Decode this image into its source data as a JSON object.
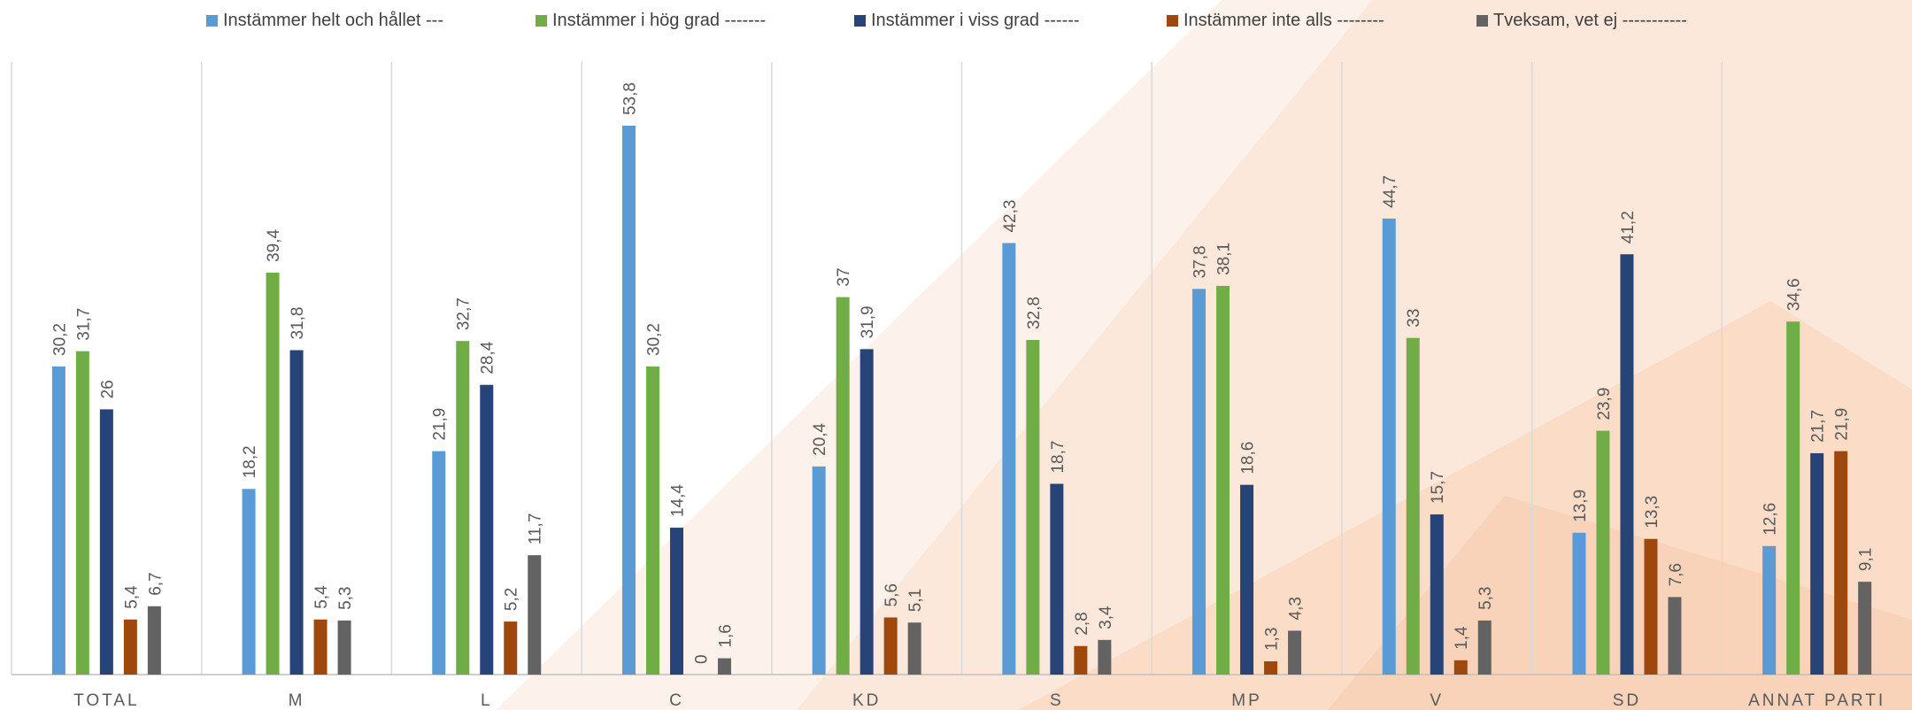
{
  "chart_data": {
    "type": "bar",
    "categories": [
      "TOTAL",
      "M",
      "L",
      "C",
      "KD",
      "S",
      "MP",
      "V",
      "SD",
      "ANNAT PARTI"
    ],
    "series": [
      {
        "name": "Instämmer helt och hållet ---",
        "color": "#5B9BD5",
        "values": [
          30.2,
          18.2,
          21.9,
          53.8,
          20.4,
          42.3,
          37.8,
          44.7,
          13.9,
          12.6
        ]
      },
      {
        "name": "Instämmer i hög grad -------",
        "color": "#70AD47",
        "values": [
          31.7,
          39.4,
          32.7,
          30.2,
          37,
          32.8,
          38.1,
          33,
          23.9,
          34.6
        ]
      },
      {
        "name": "Instämmer i viss grad ------",
        "color": "#264478",
        "values": [
          26,
          31.8,
          28.4,
          14.4,
          31.9,
          18.7,
          18.6,
          15.7,
          41.2,
          21.7
        ]
      },
      {
        "name": "Instämmer inte alls --------",
        "color": "#9E480E",
        "values": [
          5.4,
          5.4,
          5.2,
          0,
          5.6,
          2.8,
          1.3,
          1.4,
          13.3,
          21.9
        ]
      },
      {
        "name": "Tveksam, vet ej -----------",
        "color": "#636363",
        "values": [
          6.7,
          5.3,
          11.7,
          1.6,
          5.1,
          3.4,
          4.3,
          5.3,
          7.6,
          9.1
        ]
      }
    ],
    "value_labels": [
      [
        "30,2",
        "18,2",
        "21,9",
        "53,8",
        "20,4",
        "42,3",
        "37,8",
        "44,7",
        "13,9",
        "12,6"
      ],
      [
        "31,7",
        "39,4",
        "32,7",
        "30,2",
        "37",
        "32,8",
        "38,1",
        "33",
        "23,9",
        "34,6"
      ],
      [
        "26",
        "31,8",
        "28,4",
        "14,4",
        "31,9",
        "18,7",
        "18,6",
        "15,7",
        "41,2",
        "21,7"
      ],
      [
        "5,4",
        "5,4",
        "5,2",
        "0",
        "5,6",
        "2,8",
        "1,3",
        "1,4",
        "13,3",
        "21,9"
      ],
      [
        "6,7",
        "5,3",
        "11,7",
        "1,6",
        "5,1",
        "3,4",
        "4,3",
        "5,3",
        "7,6",
        "9,1"
      ]
    ],
    "ylim": [
      0,
      60
    ],
    "legend": "top",
    "grid": false,
    "title": "",
    "xlabel": "",
    "ylabel": ""
  }
}
